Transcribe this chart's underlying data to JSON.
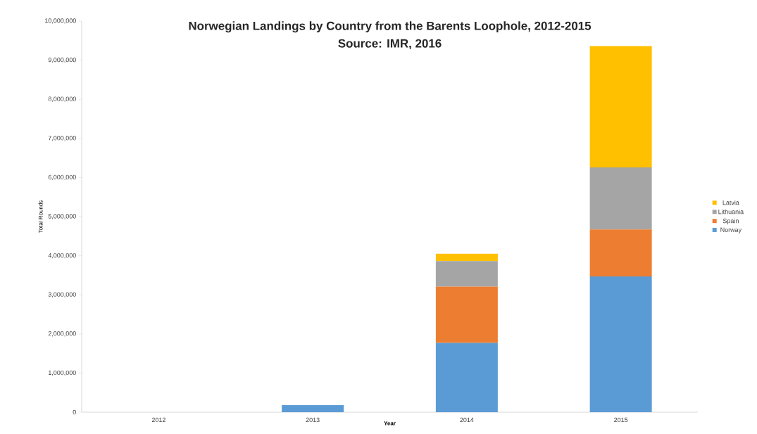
{
  "chart_data": {
    "type": "bar",
    "stacked": true,
    "title": "Norwegian Landings by Country from the Barents Loophole, 2012-2015",
    "subtitle": "Source: IMR, 2016",
    "xlabel": "Year",
    "ylabel": "Total Rounds",
    "categories": [
      "2012",
      "2013",
      "2014",
      "2015"
    ],
    "series": [
      {
        "name": "Norway",
        "color": "#5b9bd5",
        "values": [
          0,
          180000,
          1770000,
          3470000
        ]
      },
      {
        "name": "Spain",
        "color": "#ed7d31",
        "values": [
          0,
          0,
          1440000,
          1200000
        ]
      },
      {
        "name": "Lithuania",
        "color": "#a5a5a5",
        "values": [
          0,
          0,
          650000,
          1590000
        ]
      },
      {
        "name": "Latvia",
        "color": "#ffc000",
        "values": [
          0,
          0,
          190000,
          3100000
        ]
      }
    ],
    "ylim": [
      0,
      10000000
    ],
    "yticks": [
      {
        "value": 0,
        "label": "0"
      },
      {
        "value": 1000000,
        "label": "1,000,000"
      },
      {
        "value": 2000000,
        "label": "2,000,000"
      },
      {
        "value": 3000000,
        "label": "3,000,000"
      },
      {
        "value": 4000000,
        "label": "4,000,000"
      },
      {
        "value": 5000000,
        "label": "5,000,000"
      },
      {
        "value": 6000000,
        "label": "6,000,000"
      },
      {
        "value": 7000000,
        "label": "7,000,000"
      },
      {
        "value": 8000000,
        "label": "8,000,000"
      },
      {
        "value": 9000000,
        "label": "9,000,000"
      },
      {
        "value": 10000000,
        "label": "10,000,000"
      }
    ],
    "legend": "right",
    "grid": false
  }
}
